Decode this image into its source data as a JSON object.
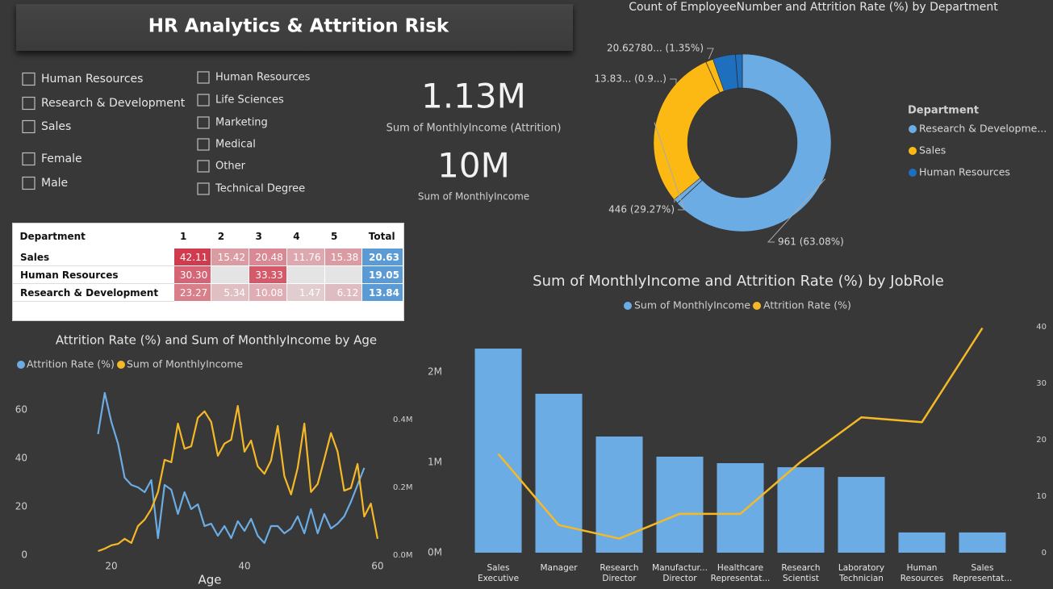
{
  "header": {
    "title": "HR Analytics & Attrition Risk"
  },
  "slicers": {
    "department": [
      "Human Resources",
      "Research & Development",
      "Sales"
    ],
    "gender": [
      "Female",
      "Male"
    ],
    "education_field": [
      "Human Resources",
      "Life Sciences",
      "Marketing",
      "Medical",
      "Other",
      "Technical Degree"
    ]
  },
  "kpis": [
    {
      "value": "1.13M",
      "label": "Sum of MonthlyIncome (Attrition)"
    },
    {
      "value": "10M",
      "label": "Sum of MonthlyIncome"
    }
  ],
  "matrix": {
    "columns": [
      "Department",
      "1",
      "2",
      "3",
      "4",
      "5",
      "Total"
    ],
    "rows": [
      [
        "Sales",
        "42.11",
        "15.42",
        "20.48",
        "11.76",
        "15.38",
        "20.63"
      ],
      [
        "Human Resources",
        "30.30",
        null,
        "33.33",
        null,
        null,
        "19.05"
      ],
      [
        "Research & Development",
        "23.27",
        "5.34",
        "10.08",
        "1.47",
        "6.12",
        "13.84"
      ]
    ]
  },
  "chart_data": [
    {
      "type": "donut",
      "title": "Count of EmployeeNumber and Attrition Rate (%) by Department",
      "legend_title": "Department",
      "categories": [
        "Research & Developme...",
        "Sales",
        "Human Resources"
      ],
      "colors": [
        "#6cace4",
        "#fdb913",
        "#1f6fbf"
      ],
      "series": [
        {
          "values": [
            961,
            446,
            63
          ],
          "value_labels": [
            "961 (63.08%)",
            "446 (29.27%)",
            null
          ]
        },
        {
          "values": [
            13.8365,
            20.6278,
            19.05
          ],
          "value_labels": [
            "13.83... (0.9...)",
            "20.62780... (1.35%)",
            null
          ]
        }
      ]
    },
    {
      "type": "line",
      "title": "Attrition Rate (%) and Sum of MonthlyIncome by Age",
      "x_label": "Age",
      "x": [
        18,
        19,
        20,
        21,
        22,
        23,
        24,
        25,
        26,
        27,
        28,
        29,
        30,
        31,
        32,
        33,
        34,
        35,
        36,
        37,
        38,
        39,
        40,
        41,
        42,
        43,
        44,
        45,
        46,
        47,
        48,
        49,
        50,
        51,
        52,
        53,
        54,
        55,
        56,
        57,
        58,
        59,
        60
      ],
      "xlim": [
        16.6,
        60.5
      ],
      "xticks": [
        20,
        40,
        60
      ],
      "ylim": [
        0,
        69.3
      ],
      "yticks": [
        0,
        20,
        40,
        60
      ],
      "y2lim": [
        0,
        495000
      ],
      "y2ticks": [
        {
          "value": 0,
          "label": "0.0M"
        },
        {
          "value": 200000,
          "label": "0.2M"
        },
        {
          "value": 400000,
          "label": "0.4M"
        }
      ],
      "series": [
        {
          "name": "Attrition Rate (%)",
          "color": "#6cace4",
          "values": [
            50,
            67,
            55,
            46,
            32,
            29,
            28,
            26,
            31,
            7,
            29,
            27,
            17,
            26,
            19,
            21,
            12,
            13,
            8,
            12,
            7,
            14,
            10,
            15,
            8,
            5,
            12,
            12,
            9,
            11,
            16,
            9,
            19,
            9,
            17,
            11,
            13,
            16,
            22,
            29,
            36,
            null,
            null
          ]
        },
        {
          "name": "Sum of MonthlyIncome",
          "color": "#f5b928",
          "axis": "y2",
          "values": [
            12000,
            19000,
            29000,
            33000,
            48000,
            36000,
            86000,
            105000,
            136000,
            186000,
            281000,
            274000,
            388000,
            314000,
            321000,
            405000,
            424000,
            393000,
            293000,
            329000,
            340000,
            440000,
            305000,
            338000,
            262000,
            240000,
            279000,
            381000,
            233000,
            179000,
            257000,
            388000,
            186000,
            210000,
            283000,
            360000,
            305000,
            190000,
            198000,
            269000,
            114000,
            152000,
            48000
          ]
        }
      ]
    },
    {
      "type": "combo",
      "title": "Sum of MonthlyIncome and Attrition Rate (%) by JobRole",
      "categories": [
        "Sales Executive",
        "Manager",
        "Research Director",
        "Manufactur... Director",
        "Healthcare Representat...",
        "Research Scientist",
        "Laboratory Technician",
        "Human Resources",
        "Sales Representat..."
      ],
      "ylim": [
        0,
        2590000
      ],
      "yticks": [
        {
          "value": 0,
          "label": "0M"
        },
        {
          "value": 1000000,
          "label": "1M"
        },
        {
          "value": 2000000,
          "label": "2M"
        }
      ],
      "y2lim": [
        0,
        41.4
      ],
      "y2ticks": [
        0,
        10,
        20,
        30,
        40
      ],
      "series": [
        {
          "name": "Sum of MonthlyIncome",
          "color": "#6cace4",
          "kind": "bar",
          "values": [
            2259000,
            1759000,
            1286000,
            1063000,
            991000,
            946000,
            839000,
            224000,
            224000
          ]
        },
        {
          "name": "Attrition Rate (%)",
          "color": "#f5b928",
          "kind": "line",
          "axis": "y2",
          "values": [
            17.48,
            4.9,
            2.5,
            6.9,
            6.87,
            16.1,
            23.94,
            23.08,
            39.76
          ]
        }
      ]
    }
  ]
}
